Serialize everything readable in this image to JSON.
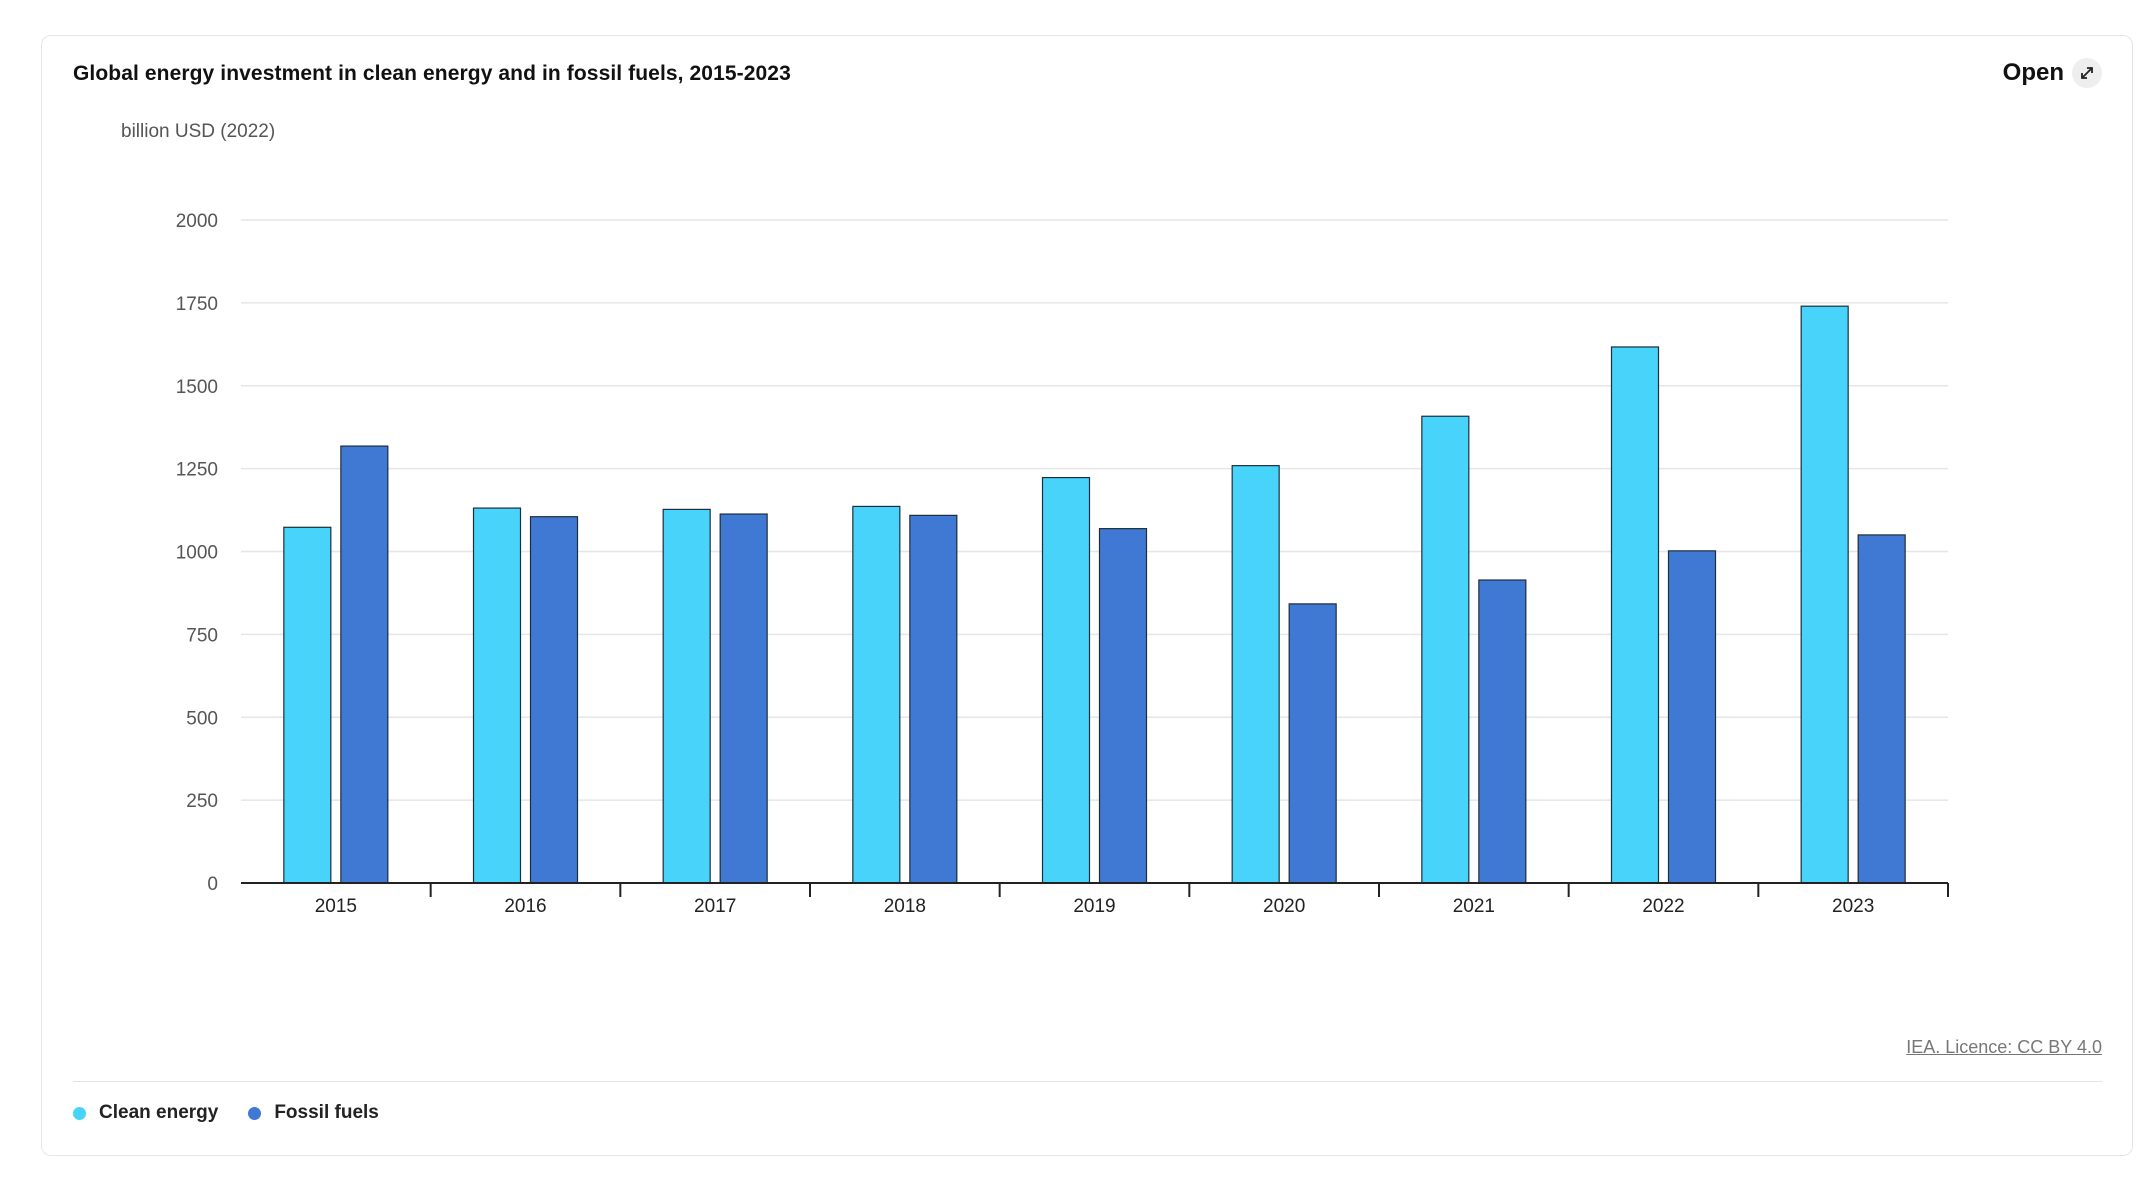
{
  "header": {
    "title": "Global energy investment in clean energy and in fossil fuels, 2015-2023",
    "open_label": "Open",
    "open_icon": "external-expand-icon"
  },
  "footer": {
    "licence": "IEA. Licence: CC BY 4.0"
  },
  "colors": {
    "clean": "#48d3fb",
    "fossil": "#3f79d4",
    "grid": "#e6e6e6",
    "axis": "#222222"
  },
  "chart_data": {
    "type": "bar",
    "title": "Global energy investment in clean energy and in fossil fuels, 2015-2023",
    "ylabel": "billion USD (2022)",
    "xlabel": "",
    "categories": [
      "2015",
      "2016",
      "2017",
      "2018",
      "2019",
      "2020",
      "2021",
      "2022",
      "2023"
    ],
    "yticks": [
      0,
      250,
      500,
      750,
      1000,
      1250,
      1500,
      1750,
      2000
    ],
    "ylim": [
      0,
      2000
    ],
    "grid": true,
    "legend_position": "bottom-left",
    "series": [
      {
        "name": "Clean energy",
        "color": "#48d3fb",
        "values": [
          1073,
          1131,
          1127,
          1136,
          1223,
          1259,
          1408,
          1617,
          1740
        ]
      },
      {
        "name": "Fossil fuels",
        "color": "#3f79d4",
        "values": [
          1318,
          1105,
          1113,
          1109,
          1069,
          842,
          914,
          1002,
          1050
        ]
      }
    ]
  }
}
